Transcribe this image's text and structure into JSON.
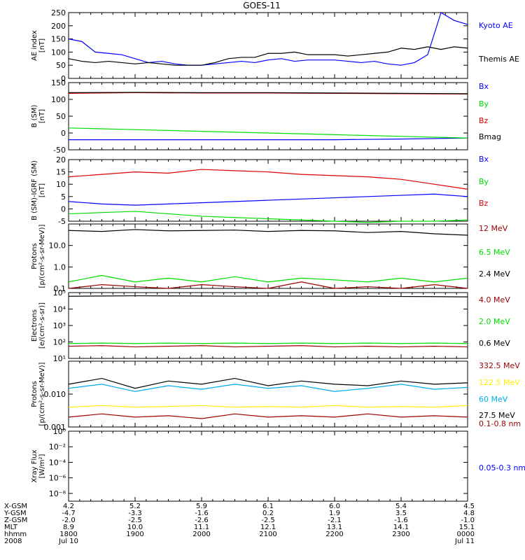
{
  "title": "GOES-11",
  "colors": {
    "black": "#000000",
    "blue": "#0000ff",
    "green": "#00dd00",
    "red": "#dd0000",
    "darkred": "#990000",
    "yellow": "#ffee00",
    "cyan": "#00aaee"
  },
  "footer": {
    "rows": [
      {
        "label": "X-GSM",
        "values": [
          "4.2",
          "5.2",
          "5.9",
          "6.1",
          "6.0",
          "5.4",
          "4.5"
        ]
      },
      {
        "label": "Y-GSM",
        "values": [
          "-4.7",
          "-3.3",
          "-1.6",
          "0.2",
          "1.9",
          "3.5",
          "4.8"
        ]
      },
      {
        "label": "Z-GSM",
        "values": [
          "-2.0",
          "-2.5",
          "-2.6",
          "-2.5",
          "-2.1",
          "-1.6",
          "-1.0"
        ]
      },
      {
        "label": "MLT",
        "values": [
          "8.9",
          "10.0",
          "11.1",
          "12.1",
          "13.1",
          "14.1",
          "15.1"
        ]
      },
      {
        "label": "hhmm",
        "values": [
          "1800",
          "1900",
          "2000",
          "2100",
          "2200",
          "2300",
          "0000"
        ]
      },
      {
        "label": "2008",
        "values": [
          "Jul 10",
          "",
          "",
          "",
          "",
          "",
          "Jul 11"
        ]
      }
    ]
  },
  "chart_data": [
    {
      "type": "line",
      "ylabel": "AE index\n[nT]",
      "ylim": [
        0,
        250
      ],
      "scale": "linear",
      "ticks": [
        "0",
        "50",
        "100",
        "150",
        "200",
        "250"
      ],
      "tick_values": [
        0,
        50,
        100,
        150,
        200,
        250
      ],
      "x": [
        18.0,
        18.2,
        18.4,
        18.6,
        18.8,
        19.0,
        19.2,
        19.4,
        19.6,
        19.8,
        20.0,
        20.2,
        20.4,
        20.6,
        20.8,
        21.0,
        21.2,
        21.4,
        21.6,
        21.8,
        22.0,
        22.2,
        22.4,
        22.6,
        22.8,
        23.0,
        23.2,
        23.4,
        23.6,
        23.8,
        24.0
      ],
      "series": [
        {
          "name": "Kyoto AE",
          "color": "blue",
          "values": [
            150,
            140,
            100,
            95,
            90,
            75,
            60,
            65,
            55,
            50,
            50,
            55,
            60,
            65,
            60,
            70,
            75,
            65,
            70,
            70,
            70,
            65,
            60,
            65,
            55,
            50,
            60,
            90,
            250,
            220,
            205
          ]
        },
        {
          "name": "Themis AE",
          "color": "black",
          "values": [
            75,
            65,
            60,
            65,
            60,
            55,
            60,
            55,
            50,
            50,
            50,
            60,
            75,
            80,
            80,
            95,
            95,
            100,
            90,
            90,
            90,
            85,
            90,
            95,
            100,
            115,
            110,
            120,
            110,
            120,
            115
          ]
        }
      ]
    },
    {
      "type": "line",
      "ylabel": "B (SM)\n[nT]",
      "ylim": [
        -50,
        150
      ],
      "scale": "linear",
      "ticks": [
        "-50",
        "0",
        "50",
        "100",
        "150"
      ],
      "tick_values": [
        -50,
        0,
        50,
        100,
        150
      ],
      "x": [
        18.0,
        19.0,
        20.0,
        21.0,
        22.0,
        23.0,
        24.0
      ],
      "series": [
        {
          "name": "Bx",
          "color": "blue",
          "values": [
            -20,
            -20,
            -20,
            -20,
            -20,
            -18,
            -15
          ]
        },
        {
          "name": "By",
          "color": "green",
          "values": [
            15,
            10,
            5,
            0,
            -5,
            -10,
            -15
          ]
        },
        {
          "name": "Bz",
          "color": "red",
          "values": [
            118,
            120,
            119,
            119,
            118,
            117,
            116
          ]
        },
        {
          "name": "Bmag",
          "color": "black",
          "values": [
            120,
            121,
            120,
            120,
            119,
            118,
            117
          ]
        }
      ]
    },
    {
      "type": "line",
      "ylabel": "B (SM)-IGRF (SM)\n[nT]",
      "ylim": [
        -5,
        20
      ],
      "scale": "linear",
      "ticks": [
        "-5",
        "0",
        "5",
        "10",
        "15",
        "20"
      ],
      "tick_values": [
        -5,
        0,
        5,
        10,
        15,
        20
      ],
      "x": [
        18.0,
        18.5,
        19.0,
        19.5,
        20.0,
        20.5,
        21.0,
        21.5,
        22.0,
        22.5,
        23.0,
        23.5,
        24.0
      ],
      "series": [
        {
          "name": "Bx",
          "color": "blue",
          "values": [
            3,
            2,
            1.5,
            2,
            2.5,
            3,
            3.5,
            4,
            4.5,
            5,
            5.5,
            6,
            5
          ]
        },
        {
          "name": "By",
          "color": "green",
          "values": [
            -2,
            -1.5,
            -1,
            -2,
            -3,
            -3.5,
            -4,
            -4.5,
            -5,
            -5.5,
            -5,
            -5,
            -4.5
          ]
        },
        {
          "name": "Bz",
          "color": "red",
          "values": [
            13,
            14,
            15,
            14.5,
            16,
            15.5,
            15,
            14,
            13.5,
            13,
            12,
            10,
            8
          ]
        }
      ]
    },
    {
      "type": "line",
      "ylabel": "Protons\n[p/(cm²-s-sr-MeV)]",
      "ylim": [
        0.1,
        100
      ],
      "scale": "log",
      "ticks": [
        "0.1",
        "1.0",
        "10.0"
      ],
      "tick_values": [
        0.1,
        1,
        10
      ],
      "x": [
        18.0,
        18.5,
        19.0,
        19.5,
        20.0,
        20.5,
        21.0,
        21.5,
        22.0,
        22.5,
        23.0,
        23.5,
        24.0
      ],
      "series": [
        {
          "name": "12 MeV",
          "color": "darkred",
          "values": [
            0.1,
            0.15,
            0.12,
            0.1,
            0.15,
            0.12,
            0.1,
            0.2,
            0.1,
            0.12,
            0.1,
            0.15,
            0.1
          ]
        },
        {
          "name": "6.5 MeV",
          "color": "green",
          "values": [
            0.2,
            0.4,
            0.2,
            0.3,
            0.2,
            0.35,
            0.2,
            0.3,
            0.25,
            0.2,
            0.3,
            0.2,
            0.3
          ]
        },
        {
          "name": "2.4 MeV",
          "color": "black",
          "values": [
            50,
            45,
            55,
            48,
            50,
            52,
            45,
            50,
            48,
            40,
            45,
            35,
            30
          ]
        }
      ]
    },
    {
      "type": "line",
      "ylabel": "Electrons\n[e/(cm²-s-sr)]",
      "ylim": [
        10,
        100000
      ],
      "scale": "log",
      "ticks": [
        "10¹",
        "10²",
        "10³",
        "10⁴",
        "10⁵"
      ],
      "tick_values": [
        10,
        100,
        1000,
        10000,
        100000
      ],
      "x": [
        18.0,
        18.5,
        19.0,
        19.5,
        20.0,
        20.5,
        21.0,
        21.5,
        22.0,
        22.5,
        23.0,
        23.5,
        24.0
      ],
      "series": [
        {
          "name": "4.0 MeV",
          "color": "darkred",
          "values": [
            55,
            60,
            50,
            55,
            60,
            50,
            55,
            60,
            50,
            55,
            50,
            55,
            50
          ]
        },
        {
          "name": "2.0 MeV",
          "color": "green",
          "values": [
            80,
            85,
            80,
            85,
            80,
            85,
            80,
            85,
            80,
            85,
            80,
            85,
            80
          ]
        },
        {
          "name": "0.6 MeV",
          "color": "black",
          "values": [
            60000,
            62000,
            64000,
            63000,
            62000,
            61000,
            62000,
            61000,
            60000,
            60000,
            58000,
            57000,
            55000
          ]
        }
      ]
    },
    {
      "type": "line",
      "ylabel": "Protons\n[p/(cm²-s-sr-MeV)]",
      "ylim": [
        0.001,
        0.1
      ],
      "scale": "log",
      "ticks": [
        "0.001",
        "0.010"
      ],
      "tick_values": [
        0.001,
        0.01
      ],
      "x": [
        18.0,
        18.5,
        19.0,
        19.5,
        20.0,
        20.5,
        21.0,
        21.5,
        22.0,
        22.5,
        23.0,
        23.5,
        24.0
      ],
      "series": [
        {
          "name": "332.5 MeV",
          "color": "darkred",
          "values": [
            0.002,
            0.0025,
            0.002,
            0.0022,
            0.0018,
            0.0025,
            0.002,
            0.0022,
            0.002,
            0.0025,
            0.002,
            0.0022,
            0.002
          ]
        },
        {
          "name": "122.5 MeV",
          "color": "yellow",
          "values": [
            0.004,
            0.0045,
            0.004,
            0.0042,
            0.0045,
            0.004,
            0.0042,
            0.004,
            0.0045,
            0.004,
            0.0042,
            0.004,
            0.0045
          ]
        },
        {
          "name": "60 MeV",
          "color": "cyan",
          "values": [
            0.015,
            0.02,
            0.012,
            0.018,
            0.014,
            0.02,
            0.015,
            0.018,
            0.012,
            0.015,
            0.02,
            0.014,
            0.016
          ]
        },
        {
          "name": "27.5 MeV",
          "color": "black",
          "values": [
            0.02,
            0.03,
            0.015,
            0.025,
            0.02,
            0.03,
            0.018,
            0.025,
            0.02,
            0.018,
            0.025,
            0.02,
            0.022
          ]
        }
      ]
    },
    {
      "type": "line",
      "ylabel": "Xray Flux\n[W/m²]",
      "ylim": [
        1e-09,
        1
      ],
      "scale": "log",
      "ticks": [
        "10⁻⁸",
        "10⁻⁶",
        "10⁻⁴",
        "10⁻²",
        "10⁰"
      ],
      "tick_values": [
        1e-08,
        1e-06,
        0.0001,
        0.01,
        1
      ],
      "x": [],
      "series": [
        {
          "name": "0.1-0.8 nm",
          "color": "darkred",
          "values": []
        },
        {
          "name": "0.05-0.3 nm",
          "color": "blue",
          "values": []
        }
      ]
    }
  ]
}
